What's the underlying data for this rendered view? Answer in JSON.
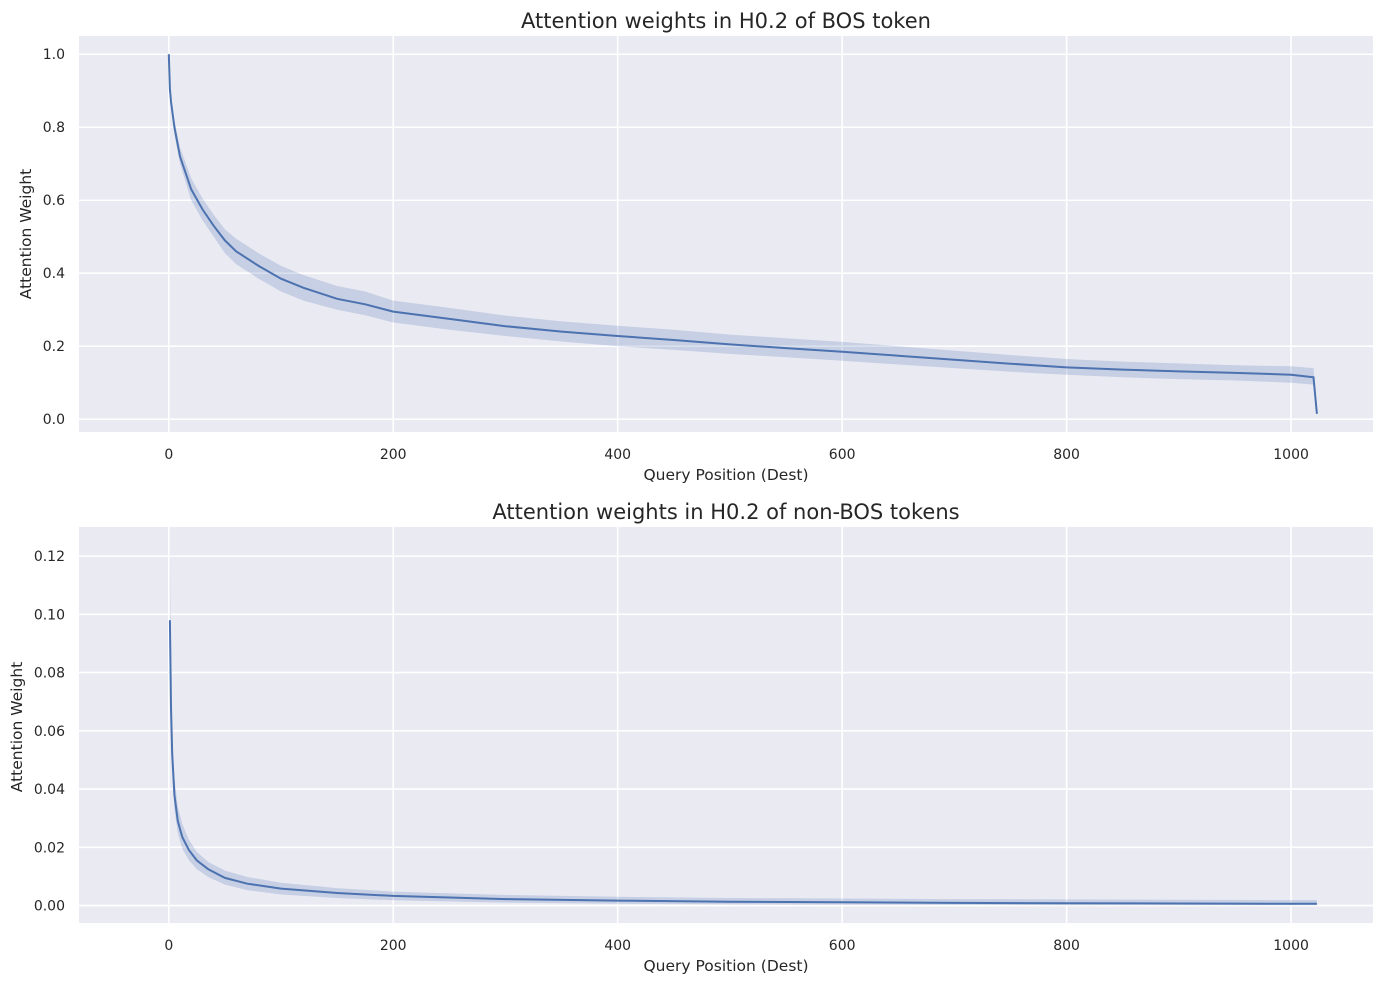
{
  "chart_data": [
    {
      "type": "line",
      "title": "Attention weights in H0.2 of BOS token",
      "xlabel": "Query Position (Dest)",
      "ylabel": "Attention Weight",
      "xlim": [
        -80,
        1073
      ],
      "ylim": [
        -0.035,
        1.05
      ],
      "xticks": [
        0,
        200,
        400,
        600,
        800,
        1000
      ],
      "yticks": [
        0.0,
        0.2,
        0.4,
        0.6,
        0.8,
        1.0
      ],
      "xtick_labels": [
        "0",
        "200",
        "400",
        "600",
        "800",
        "1000"
      ],
      "ytick_labels": [
        "0.0",
        "0.2",
        "0.4",
        "0.6",
        "0.8",
        "1.0"
      ],
      "grid": true,
      "series": [
        {
          "color": "#4c72b0",
          "x": [
            0,
            1,
            2,
            5,
            10,
            20,
            30,
            40,
            50,
            60,
            80,
            100,
            120,
            150,
            175,
            200,
            250,
            300,
            350,
            400,
            450,
            500,
            550,
            600,
            650,
            700,
            750,
            800,
            850,
            900,
            950,
            1000,
            1020,
            1023
          ],
          "y": [
            1.0,
            0.905,
            0.87,
            0.8,
            0.72,
            0.63,
            0.575,
            0.53,
            0.49,
            0.46,
            0.42,
            0.385,
            0.36,
            0.33,
            0.315,
            0.295,
            0.275,
            0.255,
            0.24,
            0.228,
            0.217,
            0.205,
            0.195,
            0.185,
            0.174,
            0.163,
            0.152,
            0.142,
            0.136,
            0.131,
            0.127,
            0.122,
            0.115,
            0.015
          ],
          "ci_lower": [
            1.0,
            0.9,
            0.86,
            0.78,
            0.7,
            0.6,
            0.545,
            0.5,
            0.455,
            0.425,
            0.385,
            0.35,
            0.325,
            0.3,
            0.285,
            0.265,
            0.245,
            0.228,
            0.213,
            0.2,
            0.19,
            0.179,
            0.17,
            0.16,
            0.15,
            0.14,
            0.13,
            0.122,
            0.115,
            0.11,
            0.106,
            0.1,
            0.095,
            0.015
          ],
          "ci_upper": [
            1.0,
            0.91,
            0.885,
            0.82,
            0.745,
            0.66,
            0.605,
            0.56,
            0.52,
            0.495,
            0.455,
            0.42,
            0.395,
            0.365,
            0.35,
            0.325,
            0.305,
            0.284,
            0.268,
            0.256,
            0.245,
            0.232,
            0.222,
            0.212,
            0.2,
            0.188,
            0.176,
            0.165,
            0.158,
            0.153,
            0.148,
            0.145,
            0.14,
            0.015
          ]
        }
      ]
    },
    {
      "type": "line",
      "title": "Attention weights in H0.2 of non-BOS tokens",
      "xlabel": "Query Position (Dest)",
      "ylabel": "Attention Weight",
      "xlim": [
        -80,
        1073
      ],
      "ylim": [
        -0.006,
        0.13
      ],
      "xticks": [
        0,
        200,
        400,
        600,
        800,
        1000
      ],
      "yticks": [
        0.0,
        0.02,
        0.04,
        0.06,
        0.08,
        0.1,
        0.12
      ],
      "xtick_labels": [
        "0",
        "200",
        "400",
        "600",
        "800",
        "1000"
      ],
      "ytick_labels": [
        "0.00",
        "0.02",
        "0.04",
        "0.06",
        "0.08",
        "0.10",
        "0.12"
      ],
      "grid": true,
      "series": [
        {
          "color": "#4c72b0",
          "x": [
            1,
            2,
            3,
            5,
            8,
            12,
            18,
            25,
            35,
            50,
            70,
            100,
            150,
            200,
            300,
            400,
            500,
            600,
            700,
            800,
            900,
            1000,
            1023
          ],
          "y": [
            0.098,
            0.068,
            0.052,
            0.038,
            0.029,
            0.0235,
            0.019,
            0.0155,
            0.0125,
            0.0095,
            0.0075,
            0.0058,
            0.0043,
            0.0033,
            0.0022,
            0.0017,
            0.0013,
            0.0011,
            0.0009,
            0.0008,
            0.0007,
            0.0006,
            0.0006
          ],
          "ci_lower": [
            0.096,
            0.063,
            0.047,
            0.033,
            0.025,
            0.0195,
            0.0155,
            0.0125,
            0.0098,
            0.0072,
            0.0053,
            0.0038,
            0.0026,
            0.0018,
            0.001,
            0.0006,
            0.0004,
            0.0003,
            0.0002,
            0.0001,
            0.0001,
            0.0001,
            0.0001
          ],
          "ci_upper": [
            0.124,
            0.074,
            0.058,
            0.044,
            0.034,
            0.028,
            0.0225,
            0.0185,
            0.015,
            0.012,
            0.0098,
            0.0078,
            0.006,
            0.0048,
            0.0036,
            0.003,
            0.0026,
            0.0024,
            0.0022,
            0.0021,
            0.002,
            0.0019,
            0.0019
          ]
        }
      ]
    }
  ]
}
